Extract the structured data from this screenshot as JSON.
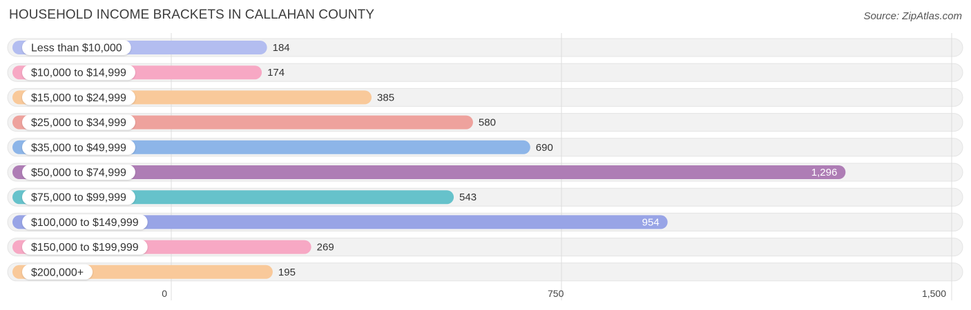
{
  "header": {
    "title": "HOUSEHOLD INCOME BRACKETS IN CALLAHAN COUNTY",
    "source": "Source: ZipAtlas.com"
  },
  "chart_data": {
    "type": "bar",
    "orientation": "horizontal",
    "title": "HOUSEHOLD INCOME BRACKETS IN CALLAHAN COUNTY",
    "xlabel": "",
    "ylabel": "",
    "xlim": [
      0,
      1500
    ],
    "ticks": [
      0,
      750,
      1500
    ],
    "tick_labels": [
      "0",
      "750",
      "1,500"
    ],
    "grid": true,
    "categories": [
      "Less than $10,000",
      "$10,000 to $14,999",
      "$15,000 to $24,999",
      "$25,000 to $34,999",
      "$35,000 to $49,999",
      "$50,000 to $74,999",
      "$75,000 to $99,999",
      "$100,000 to $149,999",
      "$150,000 to $199,999",
      "$200,000+"
    ],
    "values": [
      184,
      174,
      385,
      580,
      690,
      1296,
      543,
      954,
      269,
      195
    ],
    "value_labels": [
      "184",
      "174",
      "385",
      "580",
      "690",
      "1,296",
      "543",
      "954",
      "269",
      "195"
    ],
    "colors": [
      "#b3bdf0",
      "#f7a8c4",
      "#f9c99a",
      "#eea29d",
      "#8db5e8",
      "#ae7db5",
      "#66c2cb",
      "#98a4e6",
      "#f7a8c4",
      "#f9c99a"
    ]
  }
}
